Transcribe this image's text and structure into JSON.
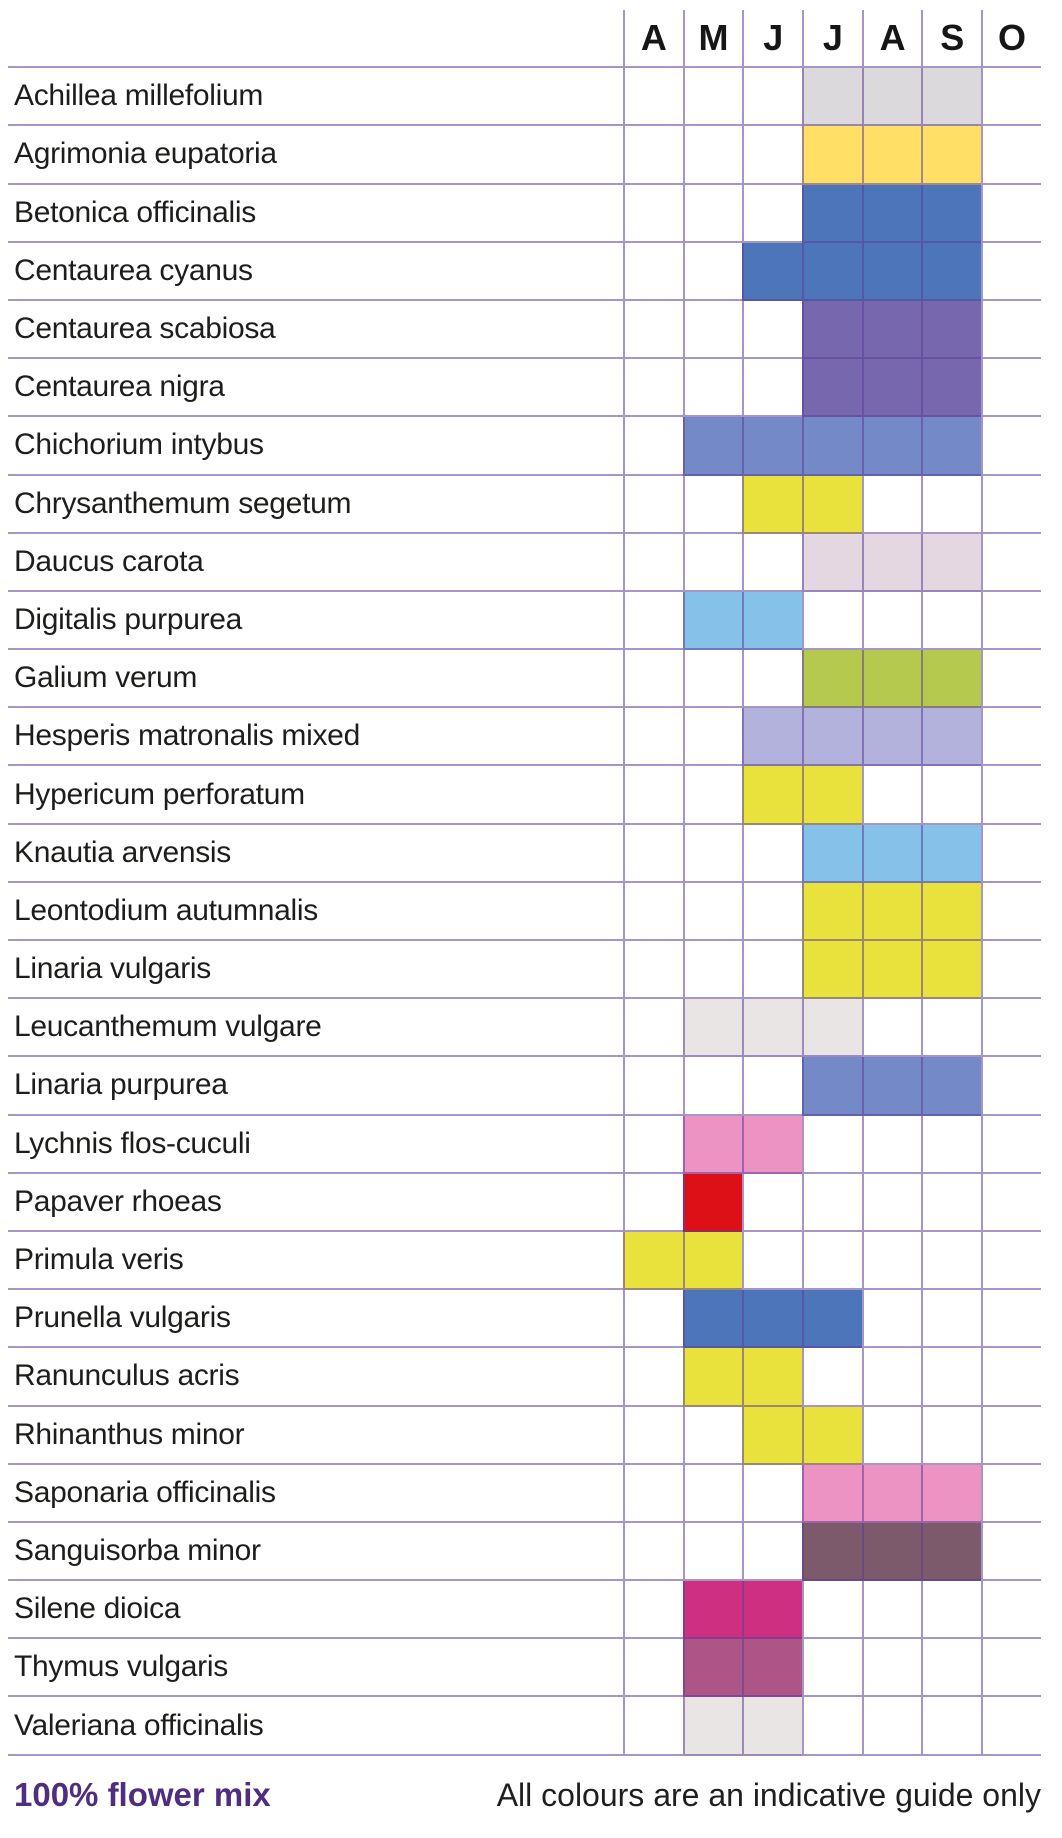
{
  "header": {
    "months": [
      "A",
      "M",
      "J",
      "J",
      "A",
      "S",
      "O"
    ]
  },
  "palette": {
    "light_gray": "#dbd9db",
    "golden_yellow": "#ffdf66",
    "strong_blue": "#4c75ba",
    "purple": "#7767ae",
    "periwinkle": "#7389c8",
    "bright_yellow": "#eae23c",
    "pale_lilac": "#e5d7e2",
    "sky_blue": "#86c1e9",
    "green": "#b5c94e",
    "light_periwinkle": "#b2b2dc",
    "pale_gray": "#eae5e5",
    "pink": "#ec93c3",
    "red": "#dc1016",
    "plum": "#7d5a6b",
    "magenta": "#ce2f80",
    "mulberry": "#ae5588",
    "grid_line": "#7a5da6",
    "footer_accent": "#4f2d7f"
  },
  "chart_data": {
    "type": "heatmap",
    "title": "",
    "x_categories": [
      "A",
      "M",
      "J",
      "J",
      "A",
      "S",
      "O"
    ],
    "legend_position": "none",
    "grid": true,
    "rows": [
      {
        "label": "Achillea millefolium",
        "color": "#dbd9db",
        "filled_months": [
          3,
          4,
          5
        ]
      },
      {
        "label": "Agrimonia eupatoria",
        "color": "#ffdf66",
        "filled_months": [
          3,
          4,
          5
        ]
      },
      {
        "label": "Betonica officinalis",
        "color": "#4c75ba",
        "filled_months": [
          3,
          4,
          5
        ]
      },
      {
        "label": "Centaurea cyanus",
        "color": "#4c75ba",
        "filled_months": [
          2,
          3,
          4,
          5
        ]
      },
      {
        "label": "Centaurea scabiosa",
        "color": "#7767ae",
        "filled_months": [
          3,
          4,
          5
        ]
      },
      {
        "label": "Centaurea nigra",
        "color": "#7767ae",
        "filled_months": [
          3,
          4,
          5
        ]
      },
      {
        "label": "Chichorium intybus",
        "color": "#7389c8",
        "filled_months": [
          1,
          2,
          3,
          4,
          5
        ]
      },
      {
        "label": "Chrysanthemum segetum",
        "color": "#eae23c",
        "filled_months": [
          2,
          3
        ]
      },
      {
        "label": "Daucus carota",
        "color": "#e5d7e2",
        "filled_months": [
          3,
          4,
          5
        ]
      },
      {
        "label": "Digitalis purpurea",
        "color": "#86c1e9",
        "filled_months": [
          1,
          2
        ]
      },
      {
        "label": "Galium verum",
        "color": "#b5c94e",
        "filled_months": [
          3,
          4,
          5
        ]
      },
      {
        "label": "Hesperis matronalis mixed",
        "color": "#b2b2dc",
        "filled_months": [
          2,
          3,
          4,
          5
        ]
      },
      {
        "label": "Hypericum perforatum",
        "color": "#eae23c",
        "filled_months": [
          2,
          3
        ]
      },
      {
        "label": "Knautia arvensis",
        "color": "#86c1e9",
        "filled_months": [
          3,
          4,
          5
        ]
      },
      {
        "label": "Leontodium autumnalis",
        "color": "#eae23c",
        "filled_months": [
          3,
          4,
          5
        ]
      },
      {
        "label": "Linaria vulgaris",
        "color": "#eae23c",
        "filled_months": [
          3,
          4,
          5
        ]
      },
      {
        "label": "Leucanthemum vulgare",
        "color": "#eae5e5",
        "filled_months": [
          1,
          2,
          3
        ]
      },
      {
        "label": "Linaria purpurea",
        "color": "#7389c8",
        "filled_months": [
          3,
          4,
          5
        ]
      },
      {
        "label": "Lychnis flos-cuculi",
        "color": "#ec93c3",
        "filled_months": [
          1,
          2
        ]
      },
      {
        "label": "Papaver rhoeas",
        "color": "#dc1016",
        "filled_months": [
          1
        ]
      },
      {
        "label": "Primula veris",
        "color": "#eae23c",
        "filled_months": [
          0,
          1
        ]
      },
      {
        "label": "Prunella vulgaris",
        "color": "#4c75ba",
        "filled_months": [
          1,
          2,
          3
        ]
      },
      {
        "label": "Ranunculus acris",
        "color": "#eae23c",
        "filled_months": [
          1,
          2
        ]
      },
      {
        "label": "Rhinanthus minor",
        "color": "#eae23c",
        "filled_months": [
          2,
          3
        ]
      },
      {
        "label": "Saponaria officinalis",
        "color": "#ec93c3",
        "filled_months": [
          3,
          4,
          5
        ]
      },
      {
        "label": "Sanguisorba minor",
        "color": "#7d5a6b",
        "filled_months": [
          3,
          4,
          5
        ]
      },
      {
        "label": "Silene dioica",
        "color": "#ce2f80",
        "filled_months": [
          1,
          2
        ]
      },
      {
        "label": "Thymus vulgaris",
        "color": "#ae5588",
        "filled_months": [
          1,
          2
        ]
      },
      {
        "label": "Valeriana officinalis",
        "color": "#eae5e5",
        "filled_months": [
          1,
          2
        ]
      }
    ]
  },
  "footer": {
    "left": "100% flower mix",
    "right": "All colours are an indicative guide only"
  }
}
